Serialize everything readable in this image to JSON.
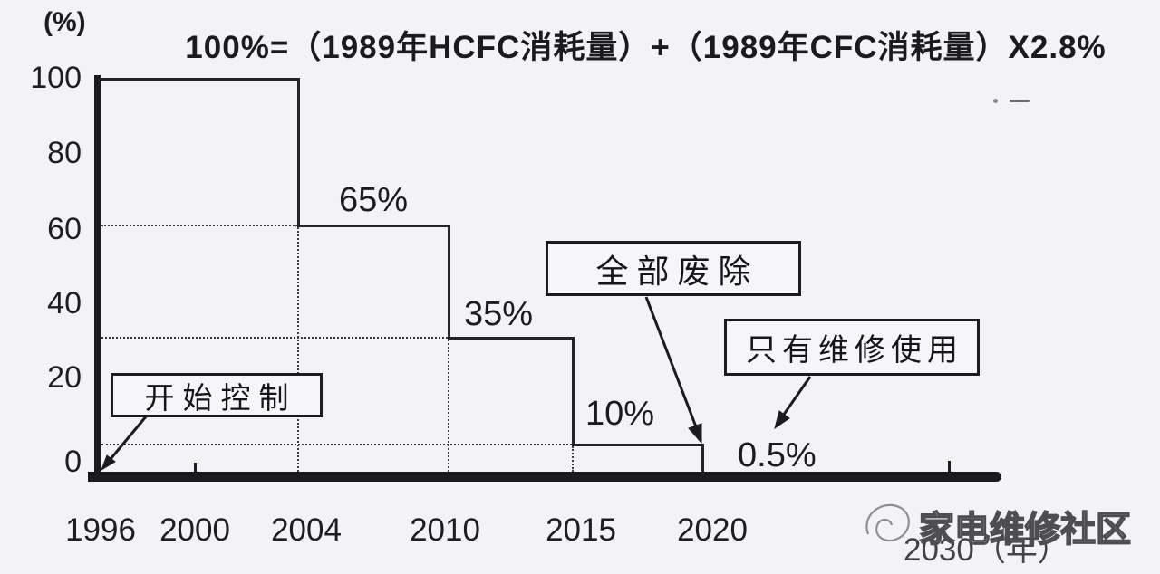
{
  "title": "100%=（1989年HCFC消耗量）+（1989年CFC消耗量）X2.8%",
  "y_axis": {
    "unit_label": "(%)",
    "ticks": [
      "100",
      "80",
      "60",
      "40",
      "20",
      "0"
    ]
  },
  "x_axis": {
    "ticks": [
      "1996",
      "2000",
      "2004",
      "2010",
      "2015",
      "2020"
    ],
    "end_label": "2030（年）"
  },
  "callouts": {
    "start_control": "开始控制",
    "full_abolition": "全部废除",
    "repair_only": "只有维修使用"
  },
  "watermark": {
    "text": "家电维修社区"
  },
  "chart_data": {
    "type": "line",
    "subtype": "step",
    "title": "100%=（1989年HCFC消耗量）+（1989年CFC消耗量）X2.8%",
    "xlabel": "年",
    "ylabel": "%",
    "ylim": [
      0,
      100
    ],
    "x_ticks": [
      1996,
      2000,
      2004,
      2010,
      2015,
      2020,
      2030
    ],
    "y_ticks": [
      0,
      20,
      40,
      60,
      80,
      100
    ],
    "grid": "dotted guides from each step down/left to the axes",
    "legend_position": "none",
    "steps": [
      {
        "from": 1996,
        "to": 2004,
        "value": 100,
        "label": ""
      },
      {
        "from": 2004,
        "to": 2010,
        "value": 65,
        "label": "65%"
      },
      {
        "from": 2010,
        "to": 2015,
        "value": 35,
        "label": "35%"
      },
      {
        "from": 2015,
        "to": 2020,
        "value": 10,
        "label": "10%"
      },
      {
        "from": 2020,
        "to": 2030,
        "value": 0.5,
        "label": "0.5%"
      }
    ],
    "annotations": [
      {
        "text": "开始控制",
        "target": "1996, 0%"
      },
      {
        "text": "全部废除",
        "target": "2020 step down to 0.5%"
      },
      {
        "text": "只有维修使用",
        "target": "0.5% level after 2020"
      }
    ]
  }
}
